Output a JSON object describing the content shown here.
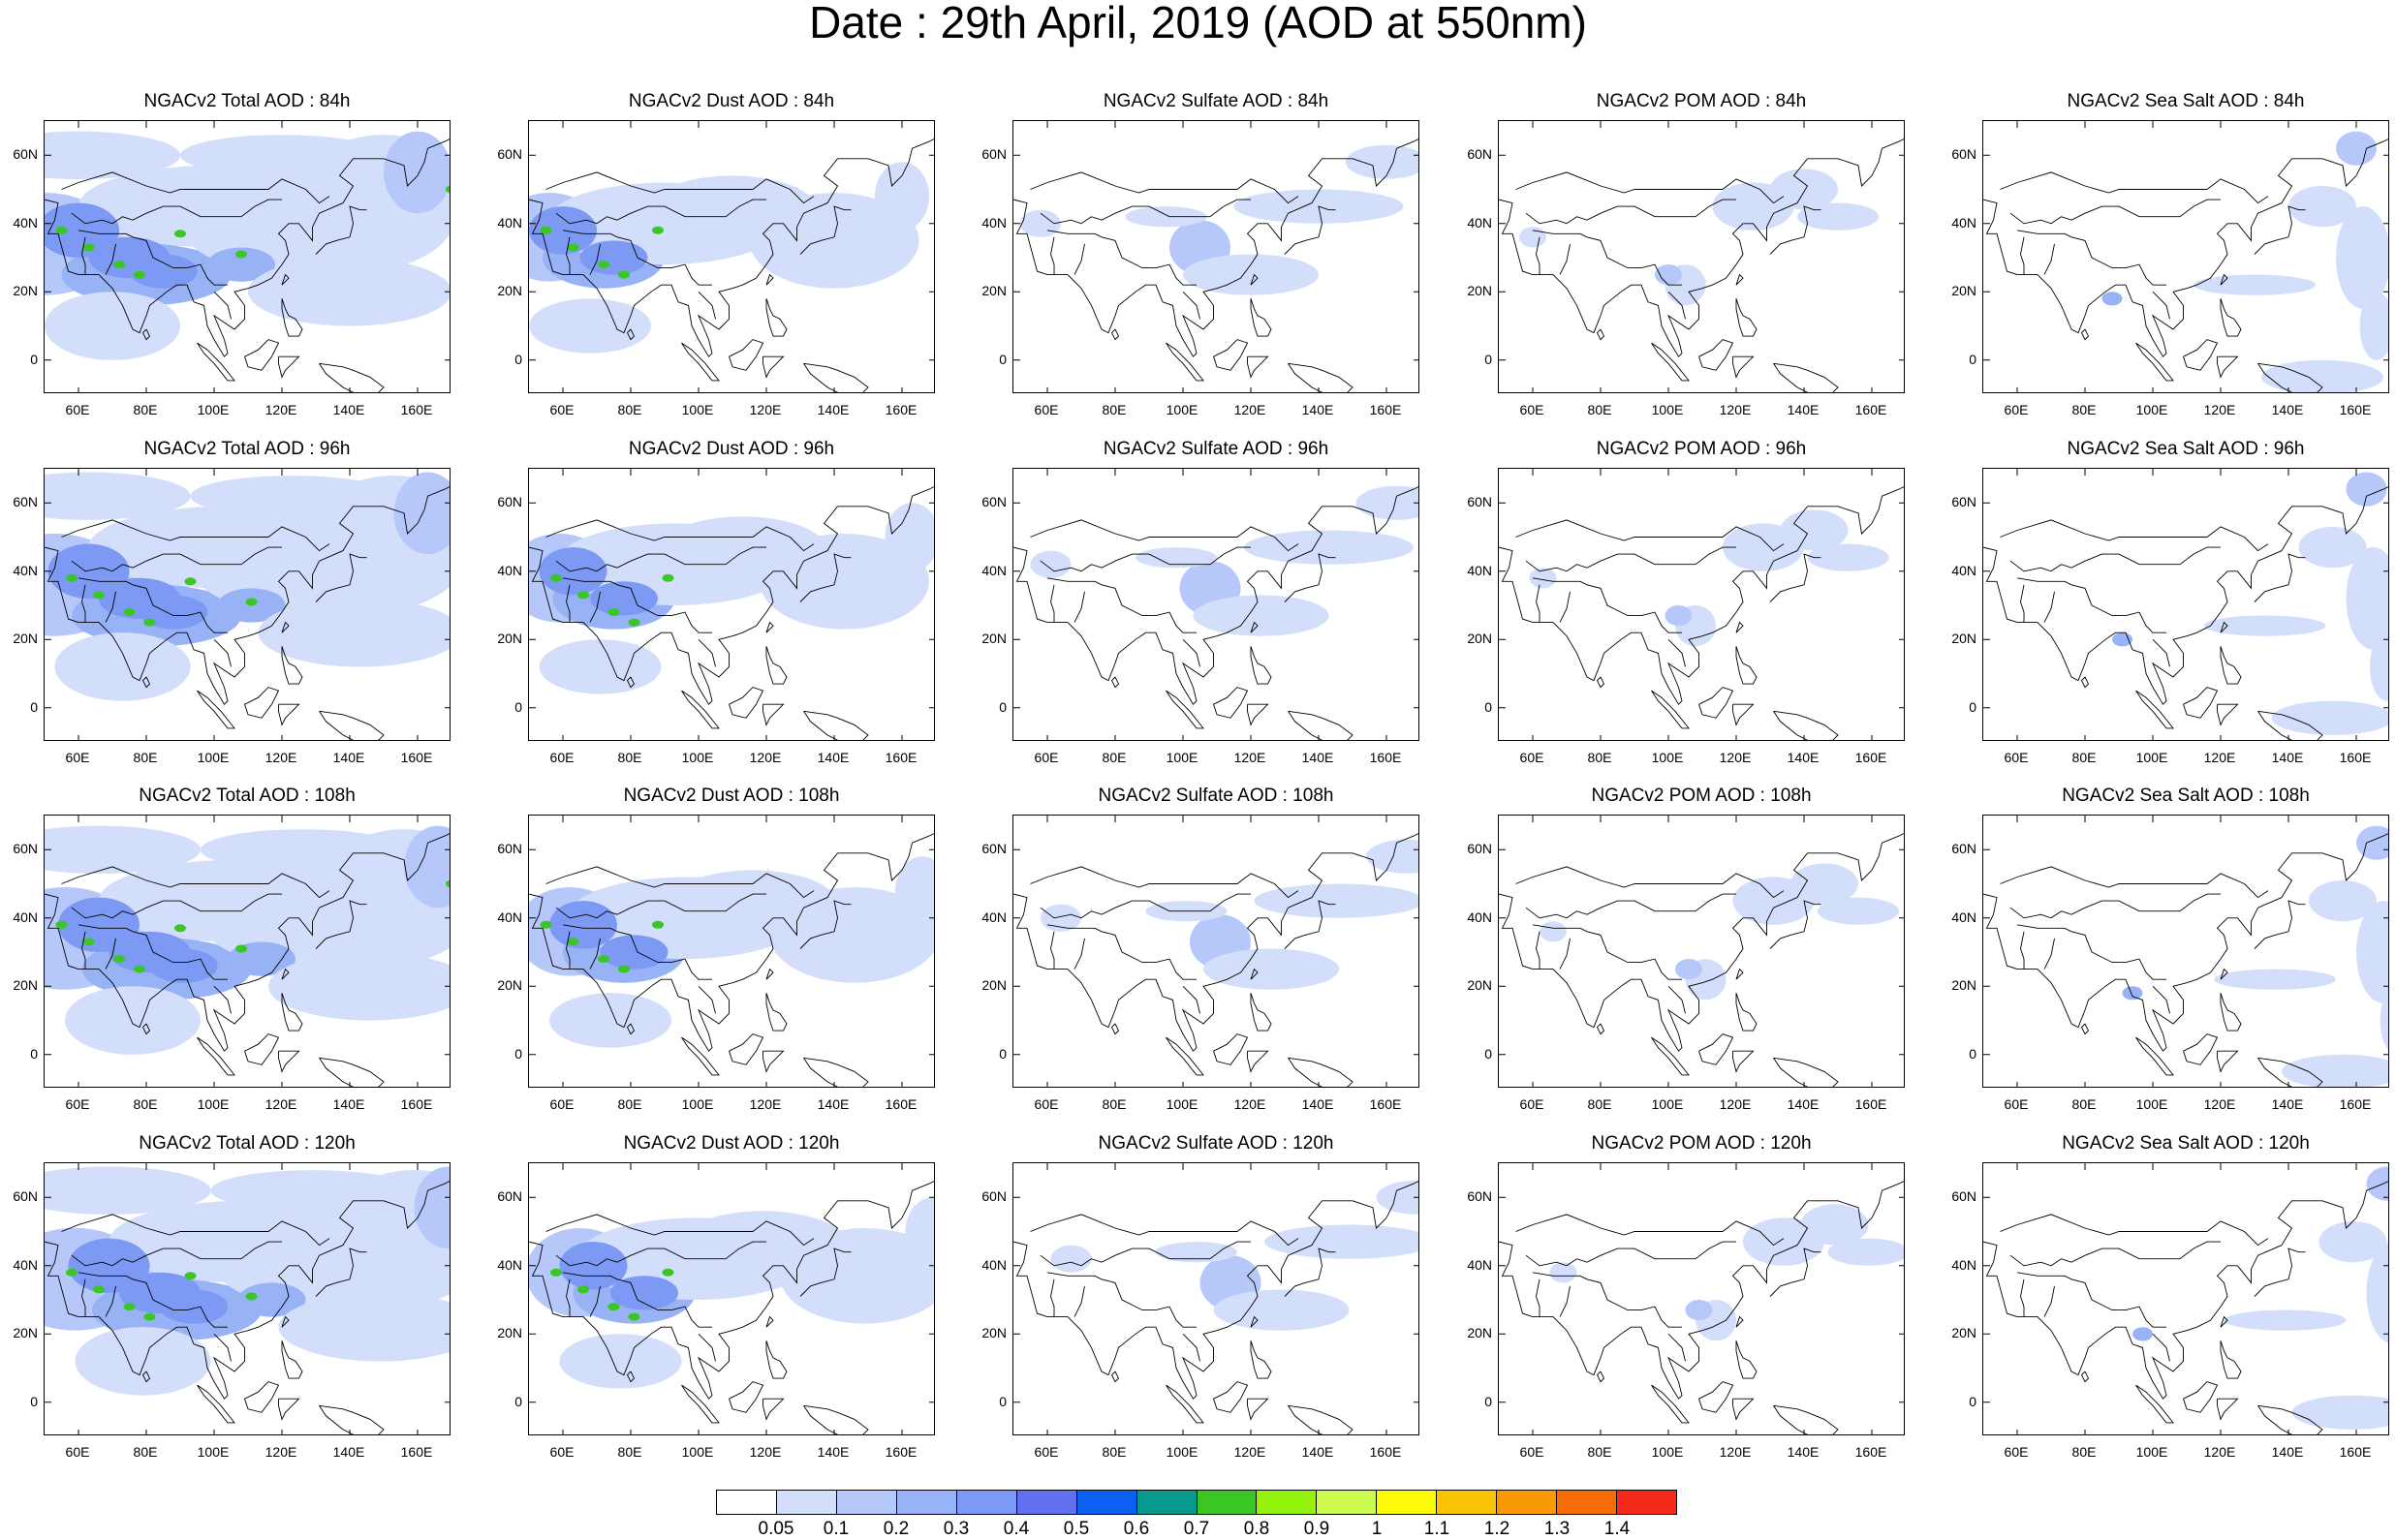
{
  "title": "Date : 29th April, 2019 (AOD at 550nm)",
  "lat_ticks": [
    "60N",
    "40N",
    "20N",
    "0"
  ],
  "lon_ticks": [
    "60E",
    "80E",
    "100E",
    "120E",
    "140E",
    "160E"
  ],
  "panels": [
    [
      "NGACv2 Total AOD : 84h",
      "NGACv2 Dust AOD : 84h",
      "NGACv2 Sulfate AOD : 84h",
      "NGACv2 POM AOD : 84h",
      "NGACv2 Sea Salt AOD : 84h"
    ],
    [
      "NGACv2 Total AOD : 96h",
      "NGACv2 Dust AOD : 96h",
      "NGACv2 Sulfate AOD : 96h",
      "NGACv2 POM AOD : 96h",
      "NGACv2 Sea Salt AOD : 96h"
    ],
    [
      "NGACv2 Total AOD : 108h",
      "NGACv2 Dust AOD : 108h",
      "NGACv2 Sulfate AOD : 108h",
      "NGACv2 POM AOD : 108h",
      "NGACv2 Sea Salt AOD : 108h"
    ],
    [
      "NGACv2 Total AOD : 120h",
      "NGACv2 Dust AOD : 120h",
      "NGACv2 Sulfate AOD : 120h",
      "NGACv2 POM AOD : 120h",
      "NGACv2 Sea Salt  AOD : 120h"
    ]
  ],
  "colorbar": {
    "labels": [
      "0.05",
      "0.1",
      "0.2",
      "0.3",
      "0.4",
      "0.5",
      "0.6",
      "0.7",
      "0.8",
      "0.9",
      "1",
      "1.1",
      "1.2",
      "1.3",
      "1.4"
    ],
    "colors": [
      "#ffffff",
      "#d3defb",
      "#b5c8f9",
      "#98b2f6",
      "#7c9af3",
      "#6270ee",
      "#0a60f0",
      "#089a8e",
      "#3ac624",
      "#93f209",
      "#ccfb50",
      "#fbfb07",
      "#fbc402",
      "#fa9802",
      "#f76c05",
      "#f42a1b"
    ]
  },
  "fill_colors": {
    "l1": "#d3defb",
    "l2": "#b5c8f9",
    "l3": "#98b2f6",
    "l4": "#7c9af3",
    "l5": "#6270ee",
    "green": "#3ac624",
    "yellowgreen": "#93f209"
  }
}
